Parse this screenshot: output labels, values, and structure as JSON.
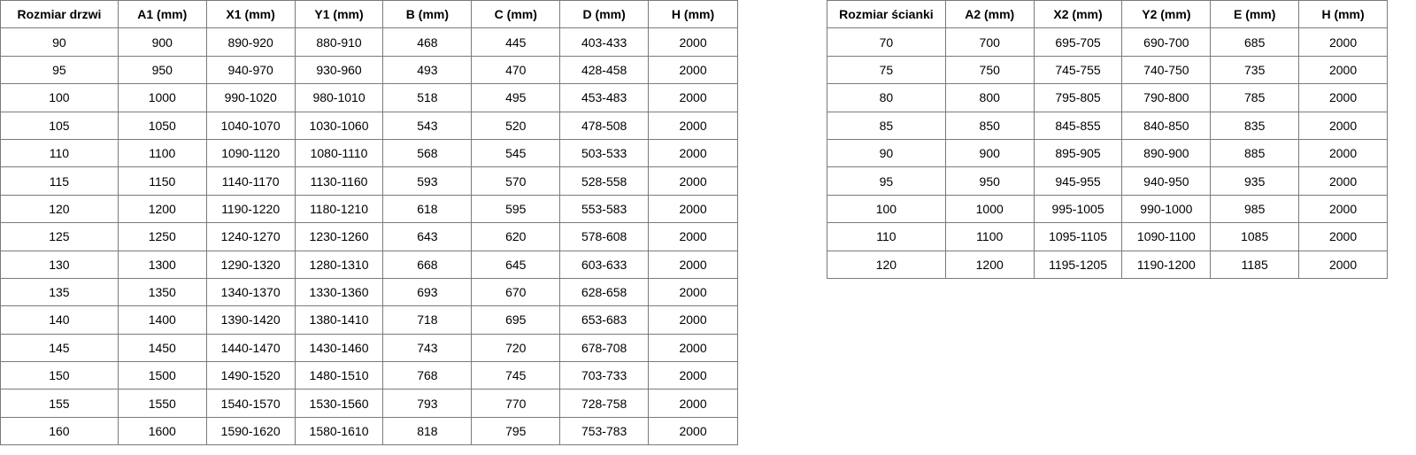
{
  "doors_table": {
    "headers": [
      "Rozmiar drzwi",
      "A1 (mm)",
      "X1 (mm)",
      "Y1 (mm)",
      "B (mm)",
      "C (mm)",
      "D (mm)",
      "H (mm)"
    ],
    "rows": [
      [
        "90",
        "900",
        "890-920",
        "880-910",
        "468",
        "445",
        "403-433",
        "2000"
      ],
      [
        "95",
        "950",
        "940-970",
        "930-960",
        "493",
        "470",
        "428-458",
        "2000"
      ],
      [
        "100",
        "1000",
        "990-1020",
        "980-1010",
        "518",
        "495",
        "453-483",
        "2000"
      ],
      [
        "105",
        "1050",
        "1040-1070",
        "1030-1060",
        "543",
        "520",
        "478-508",
        "2000"
      ],
      [
        "110",
        "1100",
        "1090-1120",
        "1080-1110",
        "568",
        "545",
        "503-533",
        "2000"
      ],
      [
        "115",
        "1150",
        "1140-1170",
        "1130-1160",
        "593",
        "570",
        "528-558",
        "2000"
      ],
      [
        "120",
        "1200",
        "1190-1220",
        "1180-1210",
        "618",
        "595",
        "553-583",
        "2000"
      ],
      [
        "125",
        "1250",
        "1240-1270",
        "1230-1260",
        "643",
        "620",
        "578-608",
        "2000"
      ],
      [
        "130",
        "1300",
        "1290-1320",
        "1280-1310",
        "668",
        "645",
        "603-633",
        "2000"
      ],
      [
        "135",
        "1350",
        "1340-1370",
        "1330-1360",
        "693",
        "670",
        "628-658",
        "2000"
      ],
      [
        "140",
        "1400",
        "1390-1420",
        "1380-1410",
        "718",
        "695",
        "653-683",
        "2000"
      ],
      [
        "145",
        "1450",
        "1440-1470",
        "1430-1460",
        "743",
        "720",
        "678-708",
        "2000"
      ],
      [
        "150",
        "1500",
        "1490-1520",
        "1480-1510",
        "768",
        "745",
        "703-733",
        "2000"
      ],
      [
        "155",
        "1550",
        "1540-1570",
        "1530-1560",
        "793",
        "770",
        "728-758",
        "2000"
      ],
      [
        "160",
        "1600",
        "1590-1620",
        "1580-1610",
        "818",
        "795",
        "753-783",
        "2000"
      ]
    ]
  },
  "wall_table": {
    "headers": [
      "Rozmiar ścianki",
      "A2 (mm)",
      "X2 (mm)",
      "Y2 (mm)",
      "E (mm)",
      "H (mm)"
    ],
    "rows": [
      [
        "70",
        "700",
        "695-705",
        "690-700",
        "685",
        "2000"
      ],
      [
        "75",
        "750",
        "745-755",
        "740-750",
        "735",
        "2000"
      ],
      [
        "80",
        "800",
        "795-805",
        "790-800",
        "785",
        "2000"
      ],
      [
        "85",
        "850",
        "845-855",
        "840-850",
        "835",
        "2000"
      ],
      [
        "90",
        "900",
        "895-905",
        "890-900",
        "885",
        "2000"
      ],
      [
        "95",
        "950",
        "945-955",
        "940-950",
        "935",
        "2000"
      ],
      [
        "100",
        "1000",
        "995-1005",
        "990-1000",
        "985",
        "2000"
      ],
      [
        "110",
        "1100",
        "1095-1105",
        "1090-1100",
        "1085",
        "2000"
      ],
      [
        "120",
        "1200",
        "1195-1205",
        "1190-1200",
        "1185",
        "2000"
      ]
    ]
  }
}
